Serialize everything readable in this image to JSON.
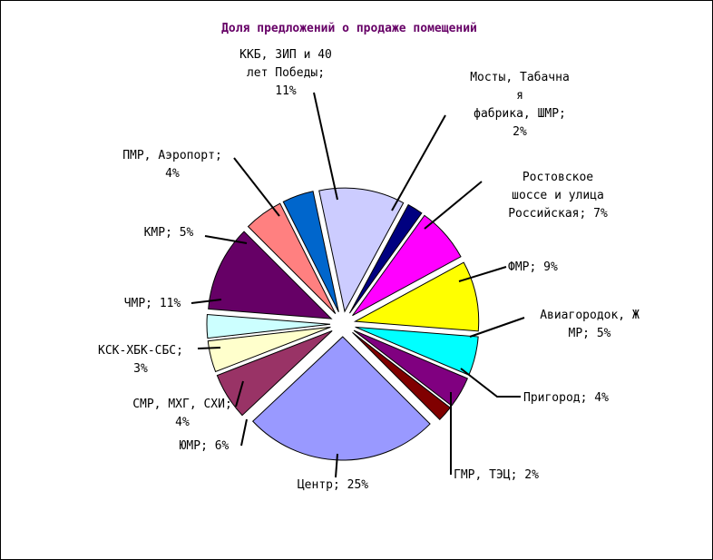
{
  "chart_data": {
    "type": "pie",
    "title": "Доля предложений о продаже помещений",
    "slices": [
      {
        "label": [
          "ККБ, ЗИП и 40",
          "лет Победы;",
          "11%"
        ],
        "value": 11,
        "color": "#ccccff"
      },
      {
        "label": [
          "Мосты, Табачна",
          "я",
          "фабрика, ШМР;",
          "2%"
        ],
        "value": 2,
        "color": "#000080"
      },
      {
        "label": [
          "Ростовское",
          "шоссе и улица",
          "Российская; 7%"
        ],
        "value": 7,
        "color": "#ff00ff"
      },
      {
        "label": [
          "ФМР; 9%"
        ],
        "value": 9,
        "color": "#ffff00"
      },
      {
        "label": [
          "Авиагородок, Ж",
          "МР; 5%"
        ],
        "value": 5,
        "color": "#00ffff"
      },
      {
        "label": [
          "Пригород; 4%"
        ],
        "value": 4,
        "color": "#800080"
      },
      {
        "label": [
          "ГМР, ТЭЦ; 2%"
        ],
        "value": 2,
        "color": "#800000"
      },
      {
        "label": [
          "Центр; 25%"
        ],
        "value": 25,
        "color": "#9999ff"
      },
      {
        "label": [
          "ЮМР; 6%"
        ],
        "value": 6,
        "color": "#993366"
      },
      {
        "label": [
          "СМР, МХГ, СХИ;",
          "4%"
        ],
        "value": 4,
        "color": "#ffffcc"
      },
      {
        "label": [
          "КСК-ХБК-СБС;",
          "3%"
        ],
        "value": 3,
        "color": "#ccffff"
      },
      {
        "label": [
          "ЧМР; 11%"
        ],
        "value": 11,
        "color": "#660066"
      },
      {
        "label": [
          "КМР; 5%"
        ],
        "value": 5,
        "color": "#ff8080"
      },
      {
        "label": [
          "ПМР, Аэропорт;",
          "4%"
        ],
        "value": 4,
        "color": "#0066cc"
      }
    ]
  }
}
